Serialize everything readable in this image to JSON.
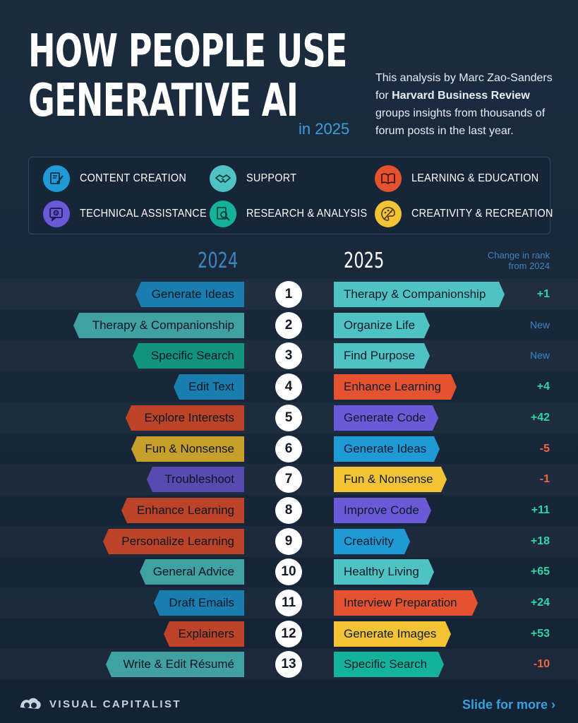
{
  "title": {
    "line1": "HOW PEOPLE USE",
    "line2": "GENERATIVE AI",
    "year_tag": "in 2025"
  },
  "intro": {
    "part1": "This analysis by Marc Zao-Sanders for ",
    "bold": "Harvard Business Review",
    "part2": " groups insights from thousands of forum posts in the last year."
  },
  "colors": {
    "content_creation": "#1e9ad6",
    "support": "#4fc3c4",
    "learning_education": "#e5522f",
    "technical_assistance": "#6b5ad8",
    "research_analysis": "#13b39b",
    "creativity_recreation": "#f2c334"
  },
  "legend": [
    {
      "key": "content_creation",
      "label": "CONTENT CREATION",
      "icon": "document-pen-icon",
      "color": "#1e9ad6"
    },
    {
      "key": "support",
      "label": "SUPPORT",
      "icon": "handshake-icon",
      "color": "#4fc3c4"
    },
    {
      "key": "learning_education",
      "label": "LEARNING & EDUCATION",
      "icon": "open-book-icon",
      "color": "#e5522f"
    },
    {
      "key": "technical_assistance",
      "label": "TECHNICAL ASSISTANCE",
      "icon": "gear-chat-icon",
      "color": "#6b5ad8"
    },
    {
      "key": "research_analysis",
      "label": "RESEARCH & ANALYSIS",
      "icon": "magnifier-document-icon",
      "color": "#13b39b"
    },
    {
      "key": "creativity_recreation",
      "label": "CREATIVITY & RECREATION",
      "icon": "palette-icon",
      "color": "#f2c334"
    }
  ],
  "headers": {
    "left": "2024",
    "right": "2025",
    "change": "Change in rank\nfrom 2024"
  },
  "rows": [
    {
      "rank": "1",
      "left": "Generate Ideas",
      "left_cat": "content_creation",
      "right": "Therapy & Companionship",
      "right_cat": "support",
      "change": "+1"
    },
    {
      "rank": "2",
      "left": "Therapy & Companionship",
      "left_cat": "support",
      "right": "Organize Life",
      "right_cat": "support",
      "change": "New"
    },
    {
      "rank": "3",
      "left": "Specific Search",
      "left_cat": "research_analysis",
      "right": "Find Purpose",
      "right_cat": "support",
      "change": "New"
    },
    {
      "rank": "4",
      "left": "Edit Text",
      "left_cat": "content_creation",
      "right": "Enhance Learning",
      "right_cat": "learning_education",
      "change": "+4"
    },
    {
      "rank": "5",
      "left": "Explore Interests",
      "left_cat": "learning_education",
      "right": "Generate Code",
      "right_cat": "technical_assistance",
      "change": "+42"
    },
    {
      "rank": "6",
      "left": "Fun & Nonsense",
      "left_cat": "creativity_recreation",
      "right": "Generate Ideas",
      "right_cat": "content_creation",
      "change": "-5"
    },
    {
      "rank": "7",
      "left": "Troubleshoot",
      "left_cat": "technical_assistance",
      "right": "Fun & Nonsense",
      "right_cat": "creativity_recreation",
      "change": "-1"
    },
    {
      "rank": "8",
      "left": "Enhance Learning",
      "left_cat": "learning_education",
      "right": "Improve Code",
      "right_cat": "technical_assistance",
      "change": "+11"
    },
    {
      "rank": "9",
      "left": "Personalize Learning",
      "left_cat": "learning_education",
      "right": "Creativity",
      "right_cat": "content_creation",
      "change": "+18"
    },
    {
      "rank": "10",
      "left": "General Advice",
      "left_cat": "support",
      "right": "Healthy Living",
      "right_cat": "support",
      "change": "+65"
    },
    {
      "rank": "11",
      "left": "Draft Emails",
      "left_cat": "content_creation",
      "right": "Interview Preparation",
      "right_cat": "learning_education",
      "change": "+24"
    },
    {
      "rank": "12",
      "left": "Explainers",
      "left_cat": "learning_education",
      "right": "Generate Images",
      "right_cat": "creativity_recreation",
      "change": "+53"
    },
    {
      "rank": "13",
      "left": "Write & Edit Résumé",
      "left_cat": "support",
      "right": "Specific Search",
      "right_cat": "research_analysis",
      "change": "-10"
    }
  ],
  "footer": {
    "brand": "VISUAL CAPITALIST",
    "slide_more": "Slide for more ›"
  }
}
